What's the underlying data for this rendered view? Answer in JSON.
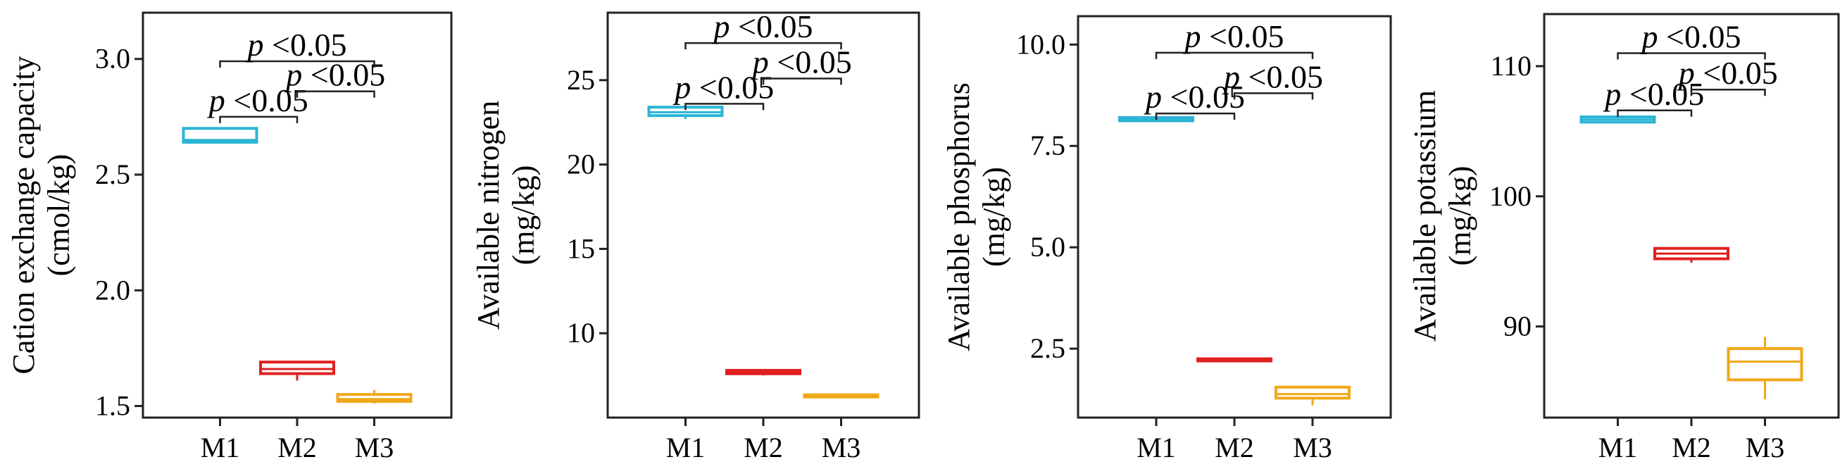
{
  "chart_data": [
    {
      "type": "box",
      "ylabel_lines": [
        "Cation exchange capacity",
        "(cmol/kg)"
      ],
      "categories": [
        "M1",
        "M2",
        "M3"
      ],
      "ylim": [
        1.45,
        3.2
      ],
      "yticks": [
        1.5,
        2.0,
        2.5,
        3.0
      ],
      "ytick_labels": [
        "1.5",
        "2.0",
        "2.5",
        "3.0"
      ],
      "boxes": [
        {
          "category": "M1",
          "min": 2.64,
          "q1": 2.64,
          "median": 2.65,
          "q3": 2.7,
          "max": 2.7,
          "color": "#2bb5d5"
        },
        {
          "category": "M2",
          "min": 1.61,
          "q1": 1.64,
          "median": 1.66,
          "q3": 1.69,
          "max": 1.69,
          "color": "#e02020"
        },
        {
          "category": "M3",
          "min": 1.51,
          "q1": 1.52,
          "median": 1.53,
          "q3": 1.55,
          "max": 1.57,
          "color": "#f0a818"
        }
      ],
      "significance": [
        {
          "from": "M1",
          "to": "M2",
          "italic": "p",
          "label": " <0.05",
          "y": 2.75
        },
        {
          "from": "M2",
          "to": "M3",
          "italic": "p",
          "label": " <0.05",
          "y": 2.86
        },
        {
          "from": "M1",
          "to": "M3",
          "italic": "p",
          "label": " <0.05",
          "y": 2.99
        }
      ]
    },
    {
      "type": "box",
      "ylabel_lines": [
        "Available nitrogen",
        "(mg/kg)"
      ],
      "categories": [
        "M1",
        "M2",
        "M3"
      ],
      "ylim": [
        5.0,
        29.0
      ],
      "yticks": [
        10,
        15,
        20,
        25
      ],
      "ytick_labels": [
        "10",
        "15",
        "20",
        "25"
      ],
      "boxes": [
        {
          "category": "M1",
          "min": 22.7,
          "q1": 22.9,
          "median": 23.1,
          "q3": 23.4,
          "max": 23.4,
          "color": "#2bb5d5"
        },
        {
          "category": "M2",
          "min": 7.5,
          "q1": 7.6,
          "median": 7.7,
          "q3": 7.8,
          "max": 7.8,
          "color": "#e02020"
        },
        {
          "category": "M3",
          "min": 6.2,
          "q1": 6.25,
          "median": 6.3,
          "q3": 6.35,
          "max": 6.35,
          "color": "#f0a818"
        }
      ],
      "significance": [
        {
          "from": "M1",
          "to": "M2",
          "italic": "p",
          "label": " <0.05",
          "y": 23.6
        },
        {
          "from": "M2",
          "to": "M3",
          "italic": "p",
          "label": " <0.05",
          "y": 25.1
        },
        {
          "from": "M1",
          "to": "M3",
          "italic": "p",
          "label": " <0.05",
          "y": 27.2
        }
      ]
    },
    {
      "type": "box",
      "ylabel_lines": [
        "Available phosphorus",
        "(mg/kg)"
      ],
      "categories": [
        "M1",
        "M2",
        "M3"
      ],
      "ylim": [
        0.8,
        10.7
      ],
      "yticks": [
        2.5,
        5.0,
        7.5,
        10.0
      ],
      "ytick_labels": [
        "2.5",
        "5.0",
        "7.5",
        "10.0"
      ],
      "boxes": [
        {
          "category": "M1",
          "min": 8.1,
          "q1": 8.12,
          "median": 8.15,
          "q3": 8.2,
          "max": 8.2,
          "color": "#2bb5d5"
        },
        {
          "category": "M2",
          "min": 2.2,
          "q1": 2.2,
          "median": 2.22,
          "q3": 2.25,
          "max": 2.25,
          "color": "#e02020"
        },
        {
          "category": "M3",
          "min": 1.1,
          "q1": 1.28,
          "median": 1.38,
          "q3": 1.55,
          "max": 1.55,
          "color": "#f0a818"
        }
      ],
      "significance": [
        {
          "from": "M1",
          "to": "M2",
          "italic": "p",
          "label": " <0.05",
          "y": 8.3
        },
        {
          "from": "M2",
          "to": "M3",
          "italic": "p",
          "label": " <0.05",
          "y": 8.8
        },
        {
          "from": "M1",
          "to": "M3",
          "italic": "p",
          "label": " <0.05",
          "y": 9.8
        }
      ]
    },
    {
      "type": "box",
      "ylabel_lines": [
        "Available potassium",
        "(mg/kg)"
      ],
      "categories": [
        "M1",
        "M2",
        "M3"
      ],
      "ylim": [
        83.0,
        114.0
      ],
      "yticks": [
        90,
        100,
        110
      ],
      "ytick_labels": [
        "90",
        "100",
        "110"
      ],
      "boxes": [
        {
          "category": "M1",
          "min": 105.6,
          "q1": 105.7,
          "median": 105.9,
          "q3": 106.1,
          "max": 106.1,
          "color": "#2bb5d5"
        },
        {
          "category": "M2",
          "min": 94.9,
          "q1": 95.2,
          "median": 95.6,
          "q3": 96.0,
          "max": 96.1,
          "color": "#e02020"
        },
        {
          "category": "M3",
          "min": 84.4,
          "q1": 85.9,
          "median": 87.3,
          "q3": 88.3,
          "max": 89.2,
          "color": "#f0a818"
        }
      ],
      "significance": [
        {
          "from": "M1",
          "to": "M2",
          "italic": "p",
          "label": " <0.05",
          "y": 106.6
        },
        {
          "from": "M2",
          "to": "M3",
          "italic": "p",
          "label": " <0.05",
          "y": 108.2
        },
        {
          "from": "M1",
          "to": "M3",
          "italic": "p",
          "label": " <0.05",
          "y": 111.0
        }
      ]
    }
  ]
}
